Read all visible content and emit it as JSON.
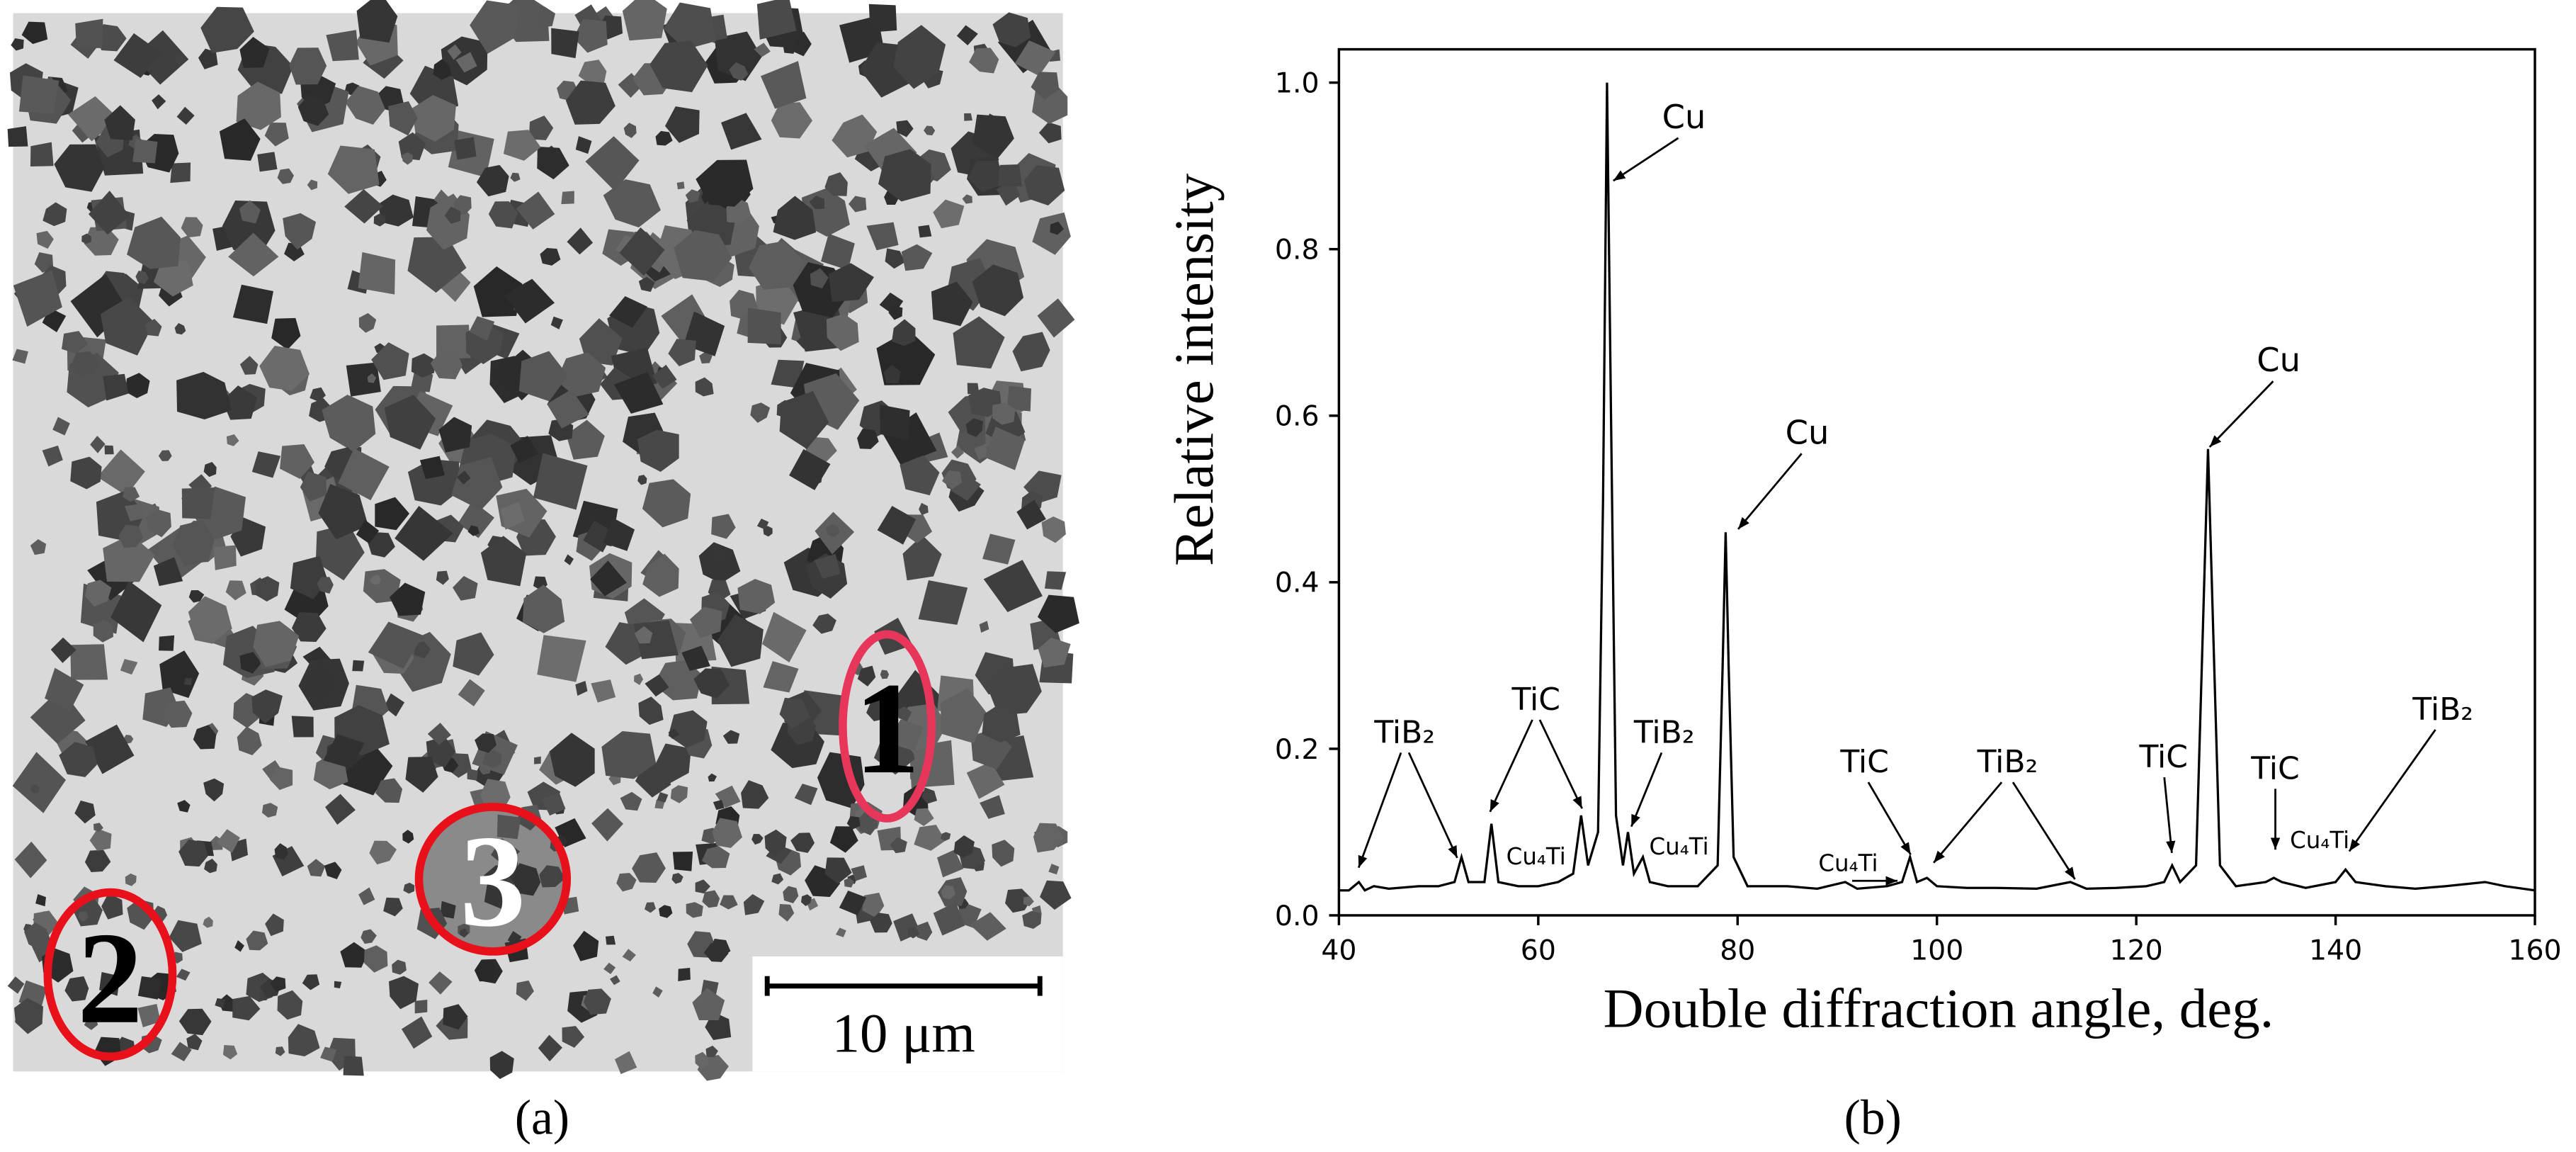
{
  "micrograph": {
    "region_labels": [
      "1",
      "2",
      "3"
    ],
    "scale_bar": "10 μm",
    "caption": "(a)"
  },
  "chart_data": {
    "type": "line",
    "caption": "(b)",
    "x_label": "Double diffraction angle, deg.",
    "y_label": "Relative intensity",
    "color": "#000000",
    "xlim": [
      40,
      160
    ],
    "xticks": [
      40,
      60,
      80,
      100,
      120,
      140,
      160
    ],
    "ylim": [
      0,
      1.04
    ],
    "yticks": [
      {
        "value": 0,
        "label": "0.0"
      },
      0.2,
      0.4,
      0.6,
      0.8,
      {
        "value": 1,
        "label": "1.0"
      }
    ],
    "annotations": [
      "Cu",
      "Cu",
      "Cu",
      "TiB₂",
      "TiC",
      "TiB₂",
      "Cu₄Ti",
      "Cu₄Ti",
      "TiC",
      "Cu₄Ti",
      "TiB₂",
      "TiC",
      "TiC",
      "Cu₄Ti",
      "TiB₂"
    ],
    "x": [
      40,
      41,
      42,
      42.6,
      43.5,
      45,
      48,
      50,
      51.6,
      52.3,
      53,
      54.6,
      55.3,
      56,
      58,
      60,
      62,
      63.5,
      64.3,
      65,
      66,
      66.5,
      66.9,
      67.3,
      67.8,
      68.5,
      69,
      69.6,
      70.5,
      71.2,
      73,
      76,
      78,
      78.5,
      78.8,
      79.1,
      79.6,
      81,
      85,
      88,
      90.8,
      92,
      95,
      96.5,
      97.3,
      98,
      99,
      100,
      103,
      106,
      110,
      113.4,
      115,
      118,
      121,
      122.8,
      123.6,
      124.4,
      126,
      126.7,
      127.2,
      127.7,
      128.4,
      130,
      133,
      133.8,
      134.6,
      137,
      140,
      141,
      142,
      145,
      148,
      151,
      155,
      157,
      160
    ],
    "values": [
      0.03,
      0.03,
      0.04,
      0.03,
      0.035,
      0.032,
      0.035,
      0.035,
      0.04,
      0.07,
      0.04,
      0.04,
      0.11,
      0.04,
      0.035,
      0.035,
      0.04,
      0.05,
      0.12,
      0.06,
      0.1,
      0.5,
      1.0,
      0.6,
      0.12,
      0.06,
      0.1,
      0.05,
      0.07,
      0.04,
      0.035,
      0.035,
      0.06,
      0.3,
      0.46,
      0.3,
      0.07,
      0.035,
      0.035,
      0.032,
      0.04,
      0.032,
      0.035,
      0.04,
      0.07,
      0.04,
      0.045,
      0.035,
      0.033,
      0.033,
      0.032,
      0.04,
      0.032,
      0.033,
      0.035,
      0.04,
      0.06,
      0.04,
      0.06,
      0.35,
      0.56,
      0.35,
      0.06,
      0.035,
      0.04,
      0.045,
      0.04,
      0.033,
      0.04,
      0.055,
      0.04,
      0.035,
      0.032,
      0.035,
      0.04,
      0.035,
      0.03
    ]
  }
}
